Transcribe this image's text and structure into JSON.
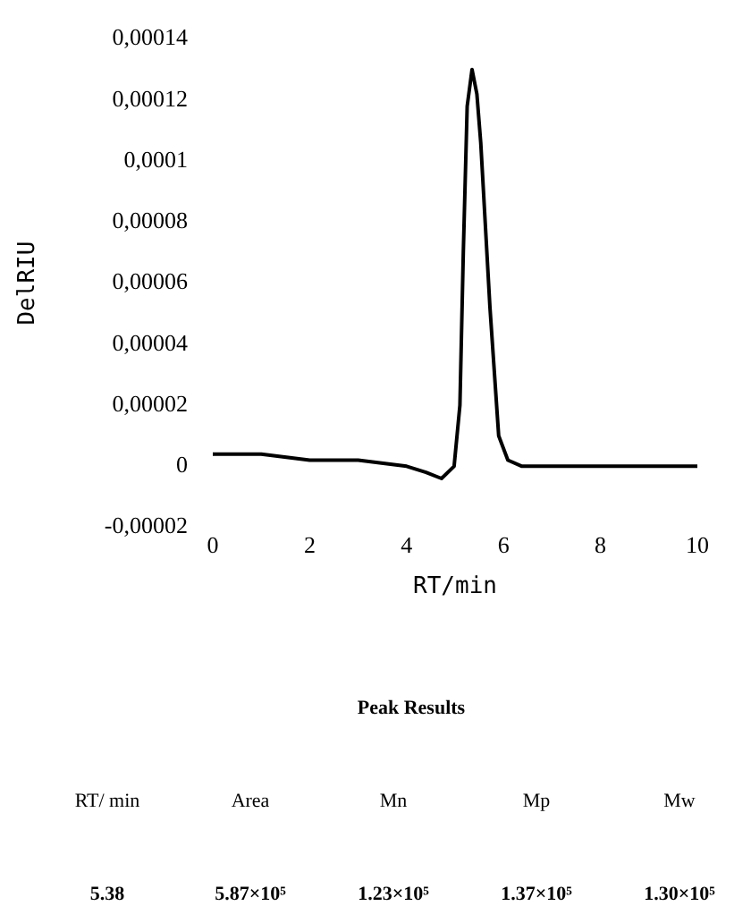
{
  "chart_data": {
    "type": "line",
    "xlabel": "RT/min",
    "ylabel": "DelRIU",
    "x": [
      0,
      1,
      2,
      3,
      4,
      4.4,
      4.72,
      4.98,
      5.1,
      5.17,
      5.25,
      5.35,
      5.45,
      5.53,
      5.72,
      5.9,
      6.09,
      6.38,
      7,
      8,
      9,
      10
    ],
    "series": [
      {
        "color": "#000000",
        "values": [
          4e-06,
          4e-06,
          2e-06,
          2e-06,
          0,
          -2e-06,
          -4e-06,
          0,
          2e-05,
          7e-05,
          0.000118,
          0.00013,
          0.000122,
          0.000106,
          5.2e-05,
          1e-05,
          2e-06,
          0,
          0,
          0,
          0,
          0
        ]
      }
    ],
    "xlim": [
      0,
      10
    ],
    "xticks": [
      0,
      2,
      4,
      6,
      8,
      10
    ],
    "ylim": [
      -2e-05,
      0.00014
    ],
    "yticks": [
      {
        "value": -2e-05,
        "label": "-0,00002"
      },
      {
        "value": 0,
        "label": "0"
      },
      {
        "value": 2e-05,
        "label": "0,00002"
      },
      {
        "value": 4e-05,
        "label": "0,00004"
      },
      {
        "value": 6e-05,
        "label": "0,00006"
      },
      {
        "value": 8e-05,
        "label": "0,00008"
      },
      {
        "value": 0.0001,
        "label": "0,0001"
      },
      {
        "value": 0.00012,
        "label": "0,00012"
      },
      {
        "value": 0.00014,
        "label": "0,00014"
      }
    ],
    "grid": false,
    "legend": false,
    "marker": "none",
    "line_style": "solid",
    "annotations": [
      "Peak Results",
      "RT/ min",
      "Area",
      "Mn",
      "Mp",
      "Mw",
      "5.38",
      "5.87×10⁵",
      "1.23×10⁵",
      "1.37×10⁵",
      "1.30×10⁵"
    ]
  }
}
